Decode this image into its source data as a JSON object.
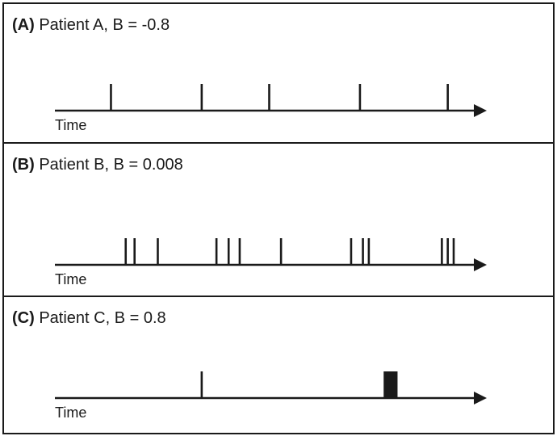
{
  "panels": [
    {
      "letter": "(A)",
      "caption": "Patient A, B = -0.8",
      "axis_label": "Time",
      "events": [
        0.071,
        0.317,
        0.5,
        0.746,
        0.984
      ]
    },
    {
      "letter": "(B)",
      "caption": "Patient B, B = 0.008",
      "axis_label": "Time",
      "events": [
        0.111,
        0.135,
        0.198,
        0.357,
        0.39,
        0.42,
        0.532,
        0.722,
        0.754,
        0.77,
        0.968,
        0.984,
        1.0
      ]
    },
    {
      "letter": "(C)",
      "caption": "Patient C, B = 0.8",
      "axis_label": "Time",
      "events": [
        0.317,
        0.813,
        0.817,
        0.821,
        0.825,
        0.829,
        0.833,
        0.837,
        0.841,
        0.845
      ]
    }
  ],
  "colors": {
    "ink": "#1a1a1a",
    "background": "#ffffff"
  }
}
